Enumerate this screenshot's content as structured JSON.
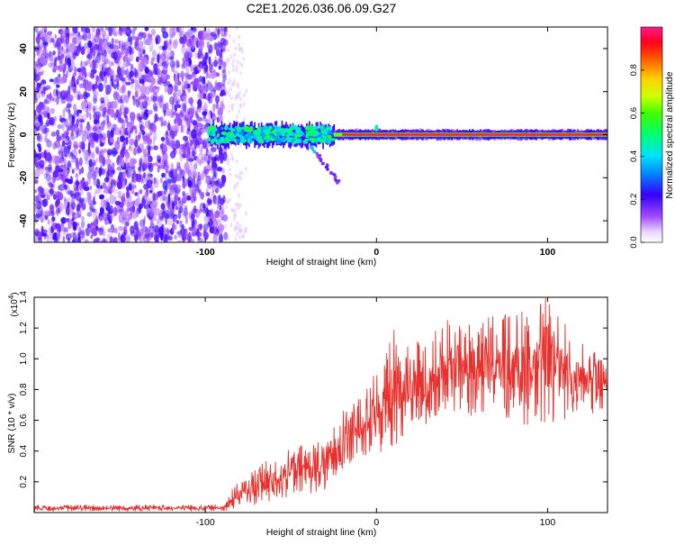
{
  "title": "C2E1.2026.036.06.09.G27",
  "chart_data": [
    {
      "type": "heatmap",
      "title": "C2E1.2026.036.06.09.G27",
      "xlabel": "Height of straight line (km)",
      "ylabel": "Frequency (Hz)",
      "xlim": [
        -200,
        135
      ],
      "ylim": [
        -50,
        50
      ],
      "xticks": [
        -100,
        0,
        100
      ],
      "xtick_labels": [
        "-100",
        "0",
        "100"
      ],
      "yticks": [
        -40,
        -20,
        0,
        20,
        40
      ],
      "ytick_labels": [
        "-40",
        "-20",
        "0",
        "20",
        "40"
      ],
      "colorbar": {
        "label": "Normalized spectral amplitude",
        "range": [
          0,
          1
        ],
        "ticks": [
          0.0,
          0.2,
          0.4,
          0.6,
          0.8
        ],
        "tick_labels": [
          "0.0",
          "0.2",
          "0.4",
          "0.6",
          "0.8"
        ]
      },
      "features": {
        "noise_region_x": [
          -200,
          -88
        ],
        "carrier_frequency": 0,
        "strong_carrier_from_x": -25,
        "tail_start": [
          -38,
          -6
        ],
        "tail_end": [
          -22,
          -22
        ]
      }
    },
    {
      "type": "line",
      "xlabel": "Height of straight line (km)",
      "ylabel": "SNR (10 * v/v)",
      "y_exponent_label": "(x10",
      "y_exponent_power": "4",
      "y_exponent_close": ")",
      "xlim": [
        -200,
        135
      ],
      "ylim": [
        0,
        1.4
      ],
      "xticks": [
        -100,
        0,
        100
      ],
      "xtick_labels": [
        "-100",
        "0",
        "100"
      ],
      "yticks": [
        0.2,
        0.4,
        0.6,
        0.8,
        1.0,
        1.2,
        1.4
      ],
      "ytick_labels": [
        "0.2",
        "0.4",
        "0.6",
        "0.8",
        "1.0",
        "1.2",
        "1.4"
      ],
      "series": [
        {
          "name": "SNR",
          "color": "#e8302c",
          "envelope": {
            "x": [
              -200,
              -90,
              -85,
              -70,
              -50,
              -40,
              -28,
              -22,
              -15,
              -5,
              5,
              10,
              20,
              40,
              60,
              80,
              100,
              120,
              135
            ],
            "min": [
              0.01,
              0.01,
              0.02,
              0.05,
              0.1,
              0.12,
              0.15,
              0.28,
              0.3,
              0.35,
              0.4,
              0.35,
              0.55,
              0.6,
              0.62,
              0.58,
              0.55,
              0.65,
              0.6
            ],
            "max": [
              0.05,
              0.05,
              0.15,
              0.3,
              0.42,
              0.45,
              0.48,
              0.65,
              0.75,
              0.85,
              1.0,
              1.25,
              1.1,
              1.25,
              1.3,
              1.3,
              1.4,
              1.1,
              1.0
            ]
          }
        }
      ]
    }
  ]
}
